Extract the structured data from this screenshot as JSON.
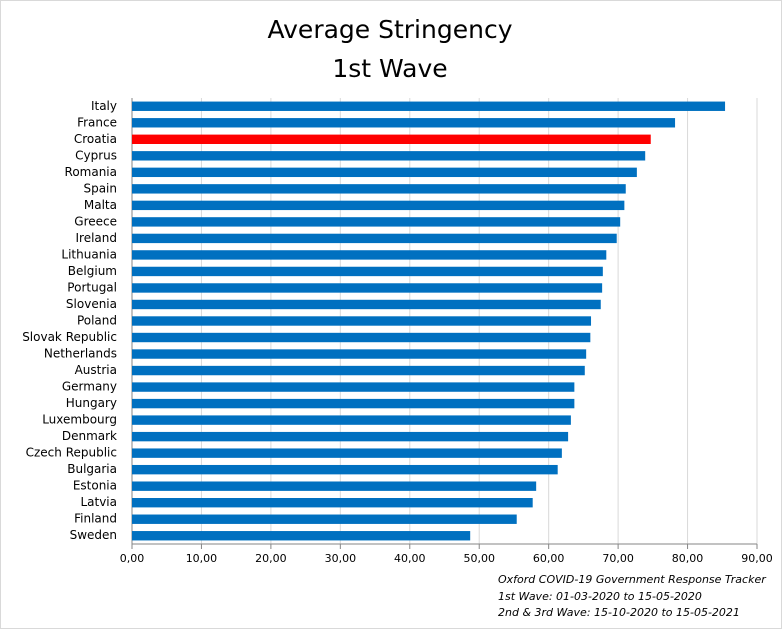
{
  "chart_data": {
    "type": "hbar",
    "title": "Average Stringency",
    "subtitle": "1st Wave",
    "categories": [
      "Italy",
      "France",
      "Croatia",
      "Cyprus",
      "Romania",
      "Spain",
      "Malta",
      "Greece",
      "Ireland",
      "Lithuania",
      "Belgium",
      "Portugal",
      "Slovenia",
      "Poland",
      "Slovak Republic",
      "Netherlands",
      "Austria",
      "Germany",
      "Hungary",
      "Luxembourg",
      "Denmark",
      "Czech Republic",
      "Bulgaria",
      "Estonia",
      "Latvia",
      "Finland",
      "Sweden"
    ],
    "values": [
      85.4,
      78.2,
      74.7,
      73.9,
      72.7,
      71.1,
      70.9,
      70.3,
      69.8,
      68.3,
      67.8,
      67.7,
      67.5,
      66.1,
      66.0,
      65.4,
      65.2,
      63.7,
      63.7,
      63.2,
      62.8,
      61.9,
      61.3,
      58.2,
      57.7,
      55.4,
      48.7
    ],
    "colors": [
      "#0070c0",
      "#0070c0",
      "#ff0000",
      "#0070c0",
      "#0070c0",
      "#0070c0",
      "#0070c0",
      "#0070c0",
      "#0070c0",
      "#0070c0",
      "#0070c0",
      "#0070c0",
      "#0070c0",
      "#0070c0",
      "#0070c0",
      "#0070c0",
      "#0070c0",
      "#0070c0",
      "#0070c0",
      "#0070c0",
      "#0070c0",
      "#0070c0",
      "#0070c0",
      "#0070c0",
      "#0070c0",
      "#0070c0",
      "#0070c0"
    ],
    "xlim": [
      0,
      90
    ],
    "xticks": [
      {
        "value": 0,
        "label": "0,00"
      },
      {
        "value": 10,
        "label": "10,00"
      },
      {
        "value": 20,
        "label": "20,00"
      },
      {
        "value": 30,
        "label": "30,00"
      },
      {
        "value": 40,
        "label": "40,00"
      },
      {
        "value": 50,
        "label": "50,00"
      },
      {
        "value": 60,
        "label": "60,00"
      },
      {
        "value": 70,
        "label": "70,00"
      },
      {
        "value": 80,
        "label": "80,00"
      },
      {
        "value": 90,
        "label": "90,00"
      }
    ],
    "grid": true,
    "annotations": [
      "Oxford COVID-19 Government  Response Tracker",
      "1st Wave: 01-03-2020 to 15-05-2020",
      "2nd & 3rd Wave: 15-10-2020 to 15-05-2021"
    ]
  }
}
